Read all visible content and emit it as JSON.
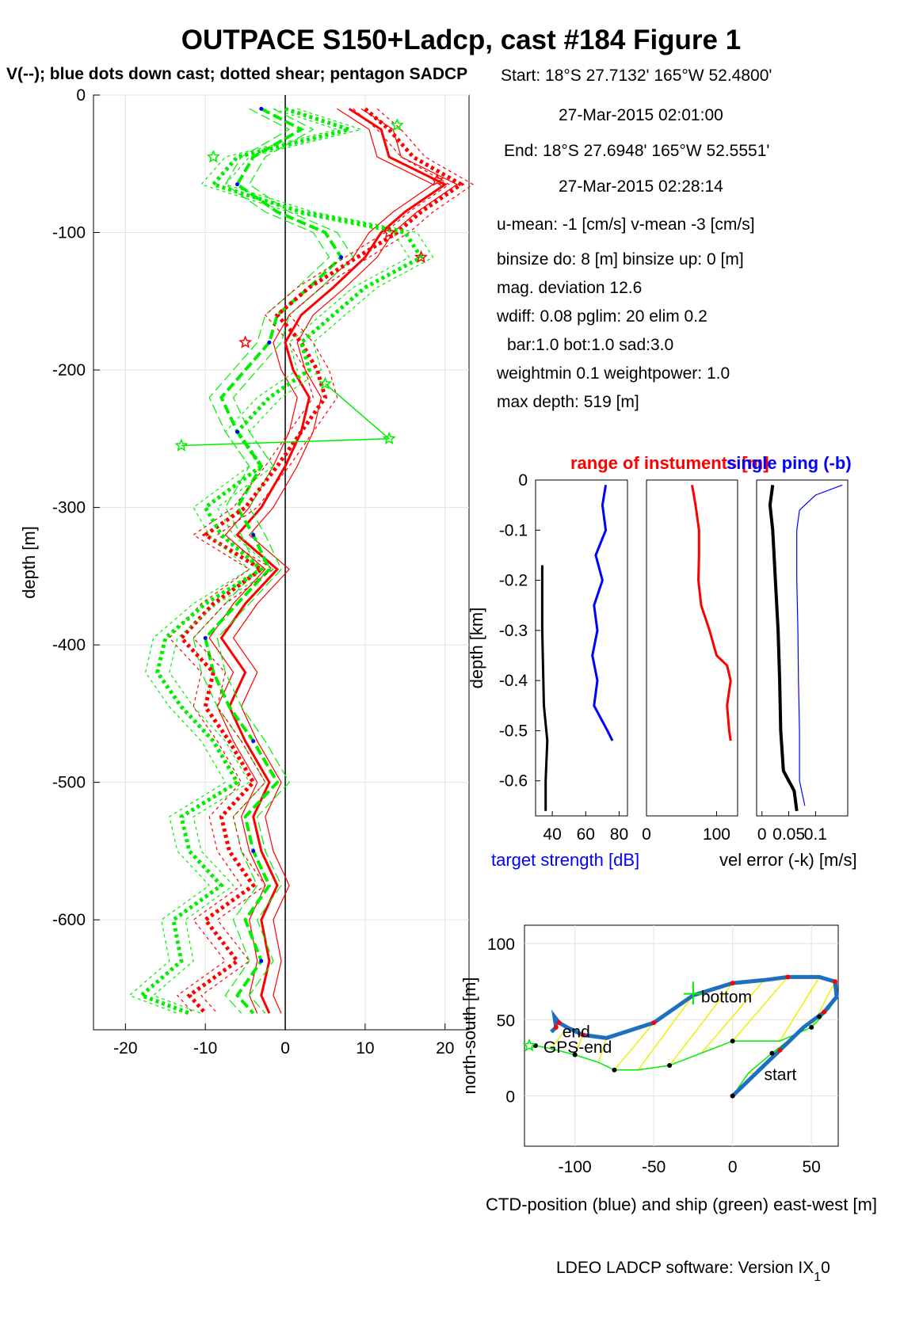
{
  "title": "OUTPACE S150+Ladcp, cast #184  Figure 1",
  "subtitle": "V(--); blue dots down cast; dotted shear; pentagon SADCP",
  "footer": "LDEO LADCP software: Version IX",
  "footer_sub": "1",
  "footer_tail": "0",
  "info": [
    "Start:  18°S 27.7132'     165°W 52.4800'",
    "27-Mar-2015 02:01:00",
    "End:  18°S 27.6948'     165°W 52.5551'",
    "27-Mar-2015 02:28:14",
    "u-mean:  -1 [cm/s]    v-mean  -3 [cm/s]",
    "binsize do: 8 [m]  binsize up:  0 [m]",
    "mag. deviation 12.6",
    "wdiff: 0.08  pglim: 20  elim 0.2",
    "bar:1.0 bot:1.0 sad:3.0",
    "weightmin 0.1  weightpower: 1.0",
    "max depth: 519 [m]"
  ],
  "colors": {
    "red": "#ff0000",
    "green": "#00ee00",
    "blue": "#0000ff",
    "ctd": "#1f6fbf",
    "yellow": "#f0f000",
    "black": "#000000"
  },
  "chart_data": [
    {
      "type": "line",
      "ylabel": "depth [m]",
      "xlim": [
        -24,
        23
      ],
      "ylim": [
        -680,
        0
      ],
      "xticks": [
        -20,
        -10,
        0,
        10,
        20
      ],
      "yticks": [
        0,
        -100,
        -200,
        -300,
        -400,
        -500,
        -600
      ],
      "ytick_labels": [
        "0",
        "-100",
        "-200",
        "-300",
        "-400",
        "-500",
        "-600"
      ],
      "depth": [
        -10,
        -25,
        -45,
        -65,
        -85,
        -100,
        -118,
        -140,
        -160,
        -180,
        -200,
        -220,
        -245,
        -270,
        -300,
        -320,
        -345,
        -370,
        -395,
        -420,
        -445,
        -470,
        -500,
        -525,
        -550,
        -575,
        -600,
        -630,
        -655,
        -668
      ],
      "series": [
        {
          "color": "red",
          "style": "solid",
          "x": [
            8,
            12,
            13,
            20,
            15,
            12,
            10,
            6,
            2,
            0,
            1,
            3,
            2,
            0,
            -3,
            -6,
            -1,
            -5,
            -8,
            -5,
            -7,
            -5,
            -2,
            -4,
            -3,
            -1,
            -3,
            -2,
            -3,
            -2
          ]
        },
        {
          "color": "green",
          "style": "dashed",
          "x": [
            -3,
            2,
            -4,
            -6,
            -1,
            5,
            7,
            3,
            -1,
            -2,
            -5,
            -8,
            -6,
            -3,
            -6,
            -4,
            -2,
            -6,
            -10,
            -9,
            -7,
            -4,
            -1,
            -5,
            -4,
            -2,
            -5,
            -3,
            -6,
            -4
          ]
        },
        {
          "color": "red",
          "style": "dotted",
          "x": [
            10,
            13,
            16,
            22,
            17,
            14,
            9,
            3,
            -1,
            2,
            4,
            5,
            2,
            -1,
            -5,
            -10,
            -3,
            -9,
            -13,
            -9,
            -10,
            -7,
            -4,
            -8,
            -7,
            -4,
            -10,
            -6,
            -12,
            -10
          ]
        },
        {
          "color": "green",
          "style": "dotted",
          "x": [
            0,
            8,
            -6,
            -9,
            2,
            15,
            17,
            10,
            6,
            2,
            3,
            -2,
            -6,
            -3,
            -10,
            -8,
            -3,
            -10,
            -15,
            -16,
            -13,
            -9,
            -6,
            -13,
            -12,
            -8,
            -14,
            -13,
            -18,
            -12
          ]
        }
      ],
      "sadcp": {
        "depth": [
          -22,
          -45,
          -62,
          -100,
          -118,
          -180,
          -210,
          -250,
          -255
        ],
        "x": [
          14,
          -9,
          19,
          13,
          17,
          -5,
          5,
          13,
          -13
        ]
      }
    },
    {
      "type": "line",
      "title": "range of instuments [m]",
      "xlabel": "target strength [dB]",
      "ylabel": "depth [km]",
      "xlim": [
        30,
        85
      ],
      "xticks": [
        40,
        60,
        80
      ],
      "ylim": [
        -0.67,
        0
      ],
      "yticks": [
        0,
        -0.1,
        -0.2,
        -0.3,
        -0.4,
        -0.5,
        -0.6
      ],
      "ytick_labels": [
        "0",
        "-0.1",
        "-0.2",
        "-0.3",
        "-0.4",
        "-0.5",
        "-0.6"
      ],
      "series": [
        {
          "color": "blue",
          "depth": [
            -0.01,
            -0.05,
            -0.1,
            -0.15,
            -0.2,
            -0.25,
            -0.3,
            -0.35,
            -0.4,
            -0.45,
            -0.5,
            -0.52
          ],
          "x": [
            72,
            70,
            72,
            66,
            70,
            65,
            67,
            64,
            67,
            65,
            73,
            76
          ]
        },
        {
          "color": "black",
          "depth": [
            -0.17,
            -0.3,
            -0.45,
            -0.52,
            -0.6,
            -0.66
          ],
          "x": [
            34,
            34,
            35,
            37,
            36,
            36
          ]
        }
      ]
    },
    {
      "type": "line",
      "xlim": [
        0,
        130
      ],
      "xticks": [
        0,
        100
      ],
      "ylim": [
        -0.67,
        0
      ],
      "series": [
        {
          "color": "red",
          "depth": [
            -0.01,
            -0.05,
            -0.1,
            -0.15,
            -0.2,
            -0.25,
            -0.3,
            -0.35,
            -0.37,
            -0.4,
            -0.45,
            -0.5,
            -0.52
          ],
          "x": [
            65,
            70,
            75,
            75,
            74,
            78,
            90,
            100,
            115,
            120,
            115,
            118,
            120
          ]
        }
      ]
    },
    {
      "type": "line",
      "title": "single ping (-b)",
      "xlabel": "vel error (-k) [m/s]",
      "xlim": [
        -0.01,
        0.16
      ],
      "xticks": [
        0,
        0.05,
        0.1
      ],
      "xtick_labels": [
        "0",
        "0.05",
        "0.1"
      ],
      "ylim": [
        -0.67,
        0
      ],
      "series": [
        {
          "color": "black",
          "depth": [
            -0.01,
            -0.05,
            -0.1,
            -0.2,
            -0.3,
            -0.4,
            -0.5,
            -0.58,
            -0.62,
            -0.66
          ],
          "x": [
            0.02,
            0.015,
            0.02,
            0.025,
            0.03,
            0.033,
            0.035,
            0.04,
            0.06,
            0.065
          ]
        },
        {
          "color": "blue",
          "depth": [
            -0.01,
            -0.03,
            -0.06,
            -0.1,
            -0.2,
            -0.3,
            -0.4,
            -0.5,
            -0.6,
            -0.65
          ],
          "x": [
            0.15,
            0.1,
            0.07,
            0.065,
            0.065,
            0.067,
            0.068,
            0.07,
            0.07,
            0.08
          ]
        }
      ]
    },
    {
      "type": "line",
      "xlabel": "CTD-position (blue) and ship (green) east-west [m]",
      "ylabel": "north-south [m]",
      "xlim": [
        -132,
        67
      ],
      "ylim": [
        -33,
        112
      ],
      "xticks": [
        -100,
        -50,
        0,
        50
      ],
      "yticks": [
        0,
        50,
        100
      ],
      "ctd": {
        "x": [
          0,
          15,
          30,
          45,
          58,
          66,
          65,
          55,
          35,
          20,
          0,
          -25,
          -50,
          -80,
          -95,
          -105,
          -110,
          -113,
          -112,
          -115
        ],
        "y": [
          0,
          15,
          30,
          45,
          55,
          65,
          75,
          78,
          78,
          76,
          74,
          66,
          48,
          38,
          40,
          45,
          48,
          52,
          45,
          42
        ]
      },
      "ship": {
        "x": [
          0,
          10,
          25,
          40,
          55,
          62,
          50,
          30,
          0,
          -20,
          -40,
          -60,
          -75,
          -85,
          -100,
          -115,
          -125,
          -128
        ],
        "y": [
          0,
          15,
          28,
          40,
          52,
          58,
          45,
          36,
          36,
          28,
          20,
          17,
          17,
          22,
          27,
          31,
          33,
          31
        ]
      },
      "labels": [
        {
          "text": "start",
          "x": 20,
          "y": 14
        },
        {
          "text": "bottom",
          "x": -20,
          "y": 65
        },
        {
          "text": "end",
          "x": -108,
          "y": 42
        },
        {
          "text": "GPS-end",
          "x": -120,
          "y": 32
        }
      ]
    }
  ]
}
